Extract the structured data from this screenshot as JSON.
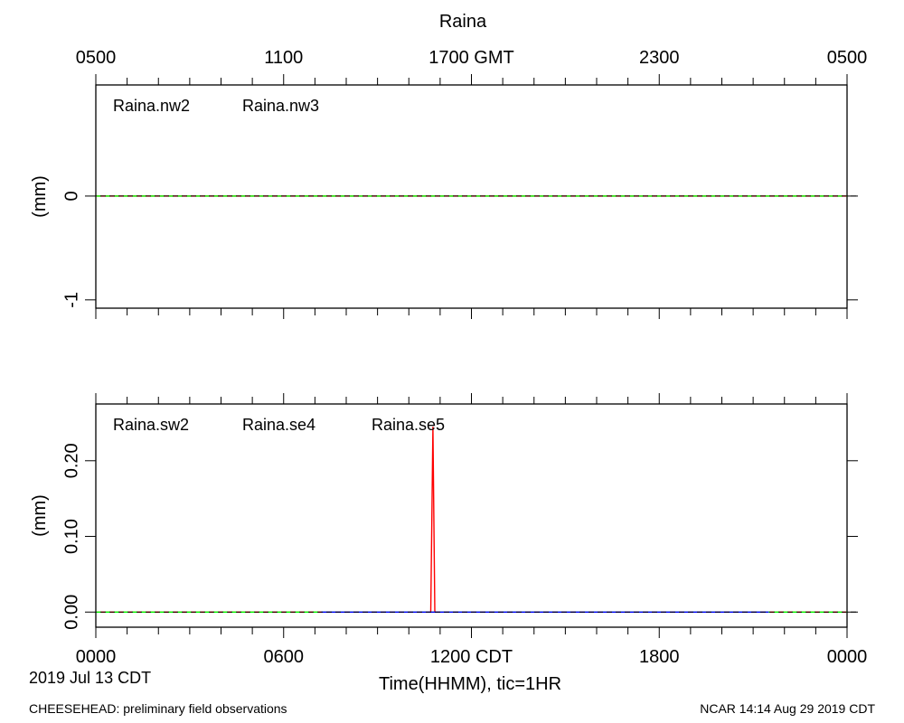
{
  "figure": {
    "title": "Raina",
    "footer_left": "CHEESEHEAD: preliminary field observations",
    "footer_right": "NCAR 14:14 Aug 29 2019 CDT",
    "date_label": "2019 Jul 13 CDT",
    "xlabel": "Time(HHMM), tic=1HR"
  },
  "top_axis": {
    "ticks": [
      {
        "hour": 0,
        "label": "0500"
      },
      {
        "hour": 6,
        "label": "1100"
      },
      {
        "hour": 12,
        "label": "1700 GMT"
      },
      {
        "hour": 18,
        "label": "2300"
      },
      {
        "hour": 24,
        "label": "0500"
      }
    ]
  },
  "bottom_axis": {
    "ticks": [
      {
        "hour": 0,
        "label": "0000"
      },
      {
        "hour": 6,
        "label": "0600"
      },
      {
        "hour": 12,
        "label": "1200 CDT"
      },
      {
        "hour": 18,
        "label": "1800"
      },
      {
        "hour": 24,
        "label": "0000"
      }
    ]
  },
  "chart_data": [
    {
      "type": "line",
      "xlim": [
        0,
        24
      ],
      "ylim": [
        -1.08,
        1.07
      ],
      "ylabel": "(mm)",
      "yticks": [
        {
          "value": 0,
          "label": "0"
        },
        {
          "value": -1,
          "label": "-1"
        }
      ],
      "grid": false,
      "series": [
        {
          "name": "Raina.nw2",
          "color": "#ff0000",
          "dashed": false,
          "x": [
            0,
            24
          ],
          "y": [
            0,
            0
          ]
        },
        {
          "name": "Raina.nw3",
          "color": "#00ff00",
          "dashed": true,
          "x": [
            0,
            24
          ],
          "y": [
            0,
            0
          ]
        }
      ]
    },
    {
      "type": "line",
      "xlim": [
        0,
        24
      ],
      "ylim": [
        -0.02,
        0.275
      ],
      "ylabel": "(mm)",
      "yticks": [
        {
          "value": 0.0,
          "label": "0.00"
        },
        {
          "value": 0.1,
          "label": "0.10"
        },
        {
          "value": 0.2,
          "label": "0.20"
        }
      ],
      "grid": false,
      "series": [
        {
          "name": "Raina.sw2",
          "color": "#ff0000",
          "dashed": false,
          "x": [
            0,
            10.7,
            10.77,
            10.83,
            24
          ],
          "y": [
            0,
            0,
            0.245,
            0,
            0
          ]
        },
        {
          "name": "Raina.se4",
          "color": "#00ff00",
          "dashed": true,
          "x": [
            0,
            24
          ],
          "y": [
            0,
            0
          ]
        },
        {
          "name": "Raina.se5",
          "color": "#0000ff",
          "dashed": false,
          "x": [
            7.2,
            21.5
          ],
          "y": [
            0,
            0
          ]
        }
      ]
    }
  ]
}
